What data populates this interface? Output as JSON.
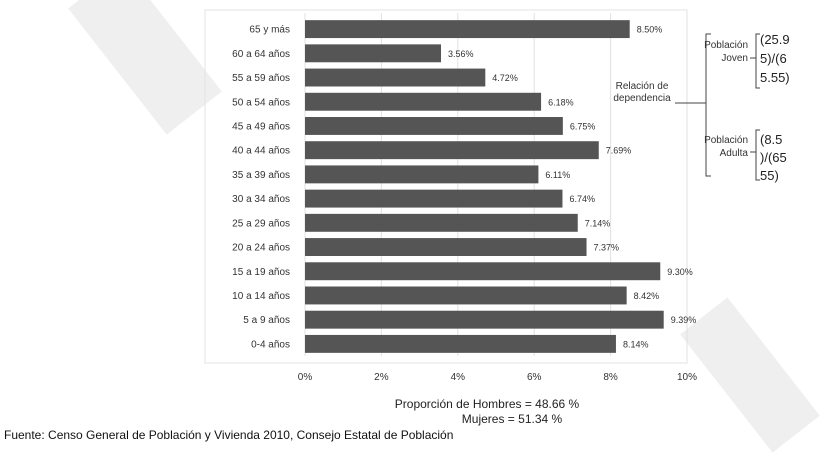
{
  "chart_data": {
    "type": "bar",
    "orientation": "horizontal",
    "categories": [
      "65 y más",
      "60 a 64 años",
      "55 a 59 años",
      "50 a 54 años",
      "45 a 49 años",
      "40 a 44 años",
      "35 a 39 años",
      "30 a 34 años",
      "25 a 29 años",
      "20 a 24 años",
      "15 a 19 años",
      "10 a 14 años",
      "5 a 9 años",
      "0-4 años"
    ],
    "values": [
      8.5,
      3.56,
      4.72,
      6.18,
      6.75,
      7.69,
      6.11,
      6.74,
      7.14,
      7.37,
      9.3,
      8.42,
      9.39,
      8.14
    ],
    "value_labels": [
      "8.50%",
      "3.56%",
      "4.72%",
      "6.18%",
      "6.75%",
      "7.69%",
      "6.11%",
      "6.74%",
      "7.14%",
      "7.37%",
      "9.30%",
      "8.42%",
      "9.39%",
      "8.14%"
    ],
    "xlim": [
      0,
      10
    ],
    "x_ticks": [
      "0%",
      "2%",
      "4%",
      "6%",
      "8%",
      "10%"
    ],
    "bar_color": "#555555",
    "grid": true
  },
  "annotations": {
    "dependencia": [
      "Relación de",
      "dependencia"
    ],
    "joven_label": [
      "Población",
      "Joven"
    ],
    "joven_formula": [
      "(25.9",
      "5)/(6",
      "5.55)"
    ],
    "adulta_label": [
      "Población",
      "Adulta"
    ],
    "adulta_formula": [
      "(8.5",
      ")/(65",
      "55)"
    ]
  },
  "proportions": {
    "hombres": "Proporción de Hombres = 48.66 %",
    "mujeres": "Mujeres = 51.34 %"
  },
  "source": "Fuente: Censo General de Población y Vivienda 2010, Consejo Estatal de Población"
}
